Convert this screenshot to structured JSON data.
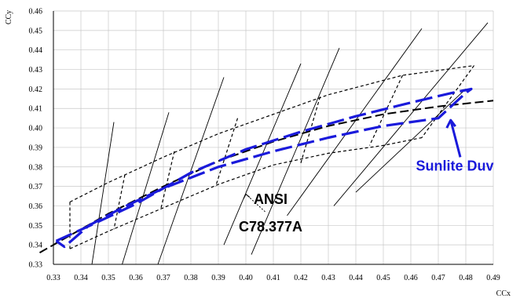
{
  "chart_data": {
    "type": "line",
    "title": "",
    "xlabel": "CCx",
    "ylabel": "CCy",
    "xlim": [
      0.33,
      0.49
    ],
    "ylim": [
      0.33,
      0.46
    ],
    "xticks": [
      "0.33",
      "0.34",
      "0.35",
      "0.36",
      "0.37",
      "0.38",
      "0.39",
      "0.40",
      "0.41",
      "0.42",
      "0.43",
      "0.44",
      "0.45",
      "0.46",
      "0.47",
      "0.48",
      "0.49"
    ],
    "yticks": [
      "0.33",
      "0.34",
      "0.35",
      "0.36",
      "0.37",
      "0.38",
      "0.39",
      "0.40",
      "0.41",
      "0.42",
      "0.43",
      "0.44",
      "0.45",
      "0.46"
    ],
    "grid": true,
    "colors": {
      "ansi": "#000000",
      "isotherm": "#000000",
      "sunlite": "#1a1adb",
      "grid": "#c8c8c8"
    },
    "series": [
      {
        "style": "planckian-locus-dashed",
        "x": [
          0.325,
          0.35,
          0.37,
          0.39,
          0.41,
          0.43,
          0.45,
          0.47,
          0.49
        ],
        "y": [
          0.336,
          0.356,
          0.37,
          0.383,
          0.393,
          0.401,
          0.407,
          0.411,
          0.414
        ]
      },
      {
        "style": "ansi-upper-dashed",
        "x": [
          0.336,
          0.35,
          0.37,
          0.39,
          0.41,
          0.43,
          0.457,
          0.483
        ],
        "y": [
          0.362,
          0.372,
          0.385,
          0.397,
          0.407,
          0.417,
          0.427,
          0.432
        ]
      },
      {
        "style": "ansi-lower-dashed",
        "x": [
          0.336,
          0.35,
          0.37,
          0.39,
          0.41,
          0.43,
          0.45,
          0.464
        ],
        "y": [
          0.338,
          0.347,
          0.359,
          0.371,
          0.381,
          0.387,
          0.391,
          0.395
        ]
      },
      {
        "style": "ansi-quadrangle-sides",
        "segments": [
          [
            [
              0.336,
              0.362
            ],
            [
              0.336,
              0.338
            ]
          ],
          [
            [
              0.356,
              0.376
            ],
            [
              0.352,
              0.348
            ]
          ],
          [
            [
              0.374,
              0.388
            ],
            [
              0.369,
              0.358
            ]
          ],
          [
            [
              0.397,
              0.405
            ],
            [
              0.389,
              0.37
            ]
          ],
          [
            [
              0.427,
              0.416
            ],
            [
              0.42,
              0.382
            ]
          ],
          [
            [
              0.457,
              0.427
            ],
            [
              0.445,
              0.391
            ]
          ],
          [
            [
              0.483,
              0.432
            ],
            [
              0.464,
              0.395
            ]
          ]
        ]
      },
      {
        "style": "isotherm-solid",
        "segments": [
          [
            [
              0.344,
              0.33
            ],
            [
              0.352,
              0.403
            ]
          ],
          [
            [
              0.355,
              0.33
            ],
            [
              0.372,
              0.408
            ]
          ],
          [
            [
              0.368,
              0.33
            ],
            [
              0.392,
              0.426
            ]
          ],
          [
            [
              0.392,
              0.34
            ],
            [
              0.42,
              0.433
            ]
          ],
          [
            [
              0.402,
              0.335
            ],
            [
              0.434,
              0.441
            ]
          ],
          [
            [
              0.415,
              0.355
            ],
            [
              0.464,
              0.451
            ]
          ],
          [
            [
              0.432,
              0.36
            ],
            [
              0.488,
              0.454
            ]
          ],
          [
            [
              0.44,
              0.367
            ],
            [
              0.48,
              0.42
            ]
          ]
        ]
      },
      {
        "style": "sunlite-duv-boundary",
        "x": [
          0.331,
          0.345,
          0.36,
          0.38,
          0.4,
          0.42,
          0.44,
          0.46,
          0.475,
          0.482,
          0.48,
          0.47,
          0.45,
          0.43,
          0.41,
          0.39,
          0.37,
          0.355,
          0.343,
          0.334,
          0.331
        ],
        "y": [
          0.342,
          0.351,
          0.361,
          0.377,
          0.389,
          0.398,
          0.406,
          0.413,
          0.418,
          0.42,
          0.418,
          0.405,
          0.401,
          0.395,
          0.388,
          0.38,
          0.369,
          0.359,
          0.35,
          0.339,
          0.342
        ]
      }
    ],
    "annotations": [
      {
        "text": "ANSI",
        "x": 0.409,
        "y": 0.361
      },
      {
        "text": "C78.377A",
        "x": 0.409,
        "y": 0.347
      },
      {
        "text": "Sunlite Duv",
        "x": 0.476,
        "y": 0.378
      }
    ]
  }
}
